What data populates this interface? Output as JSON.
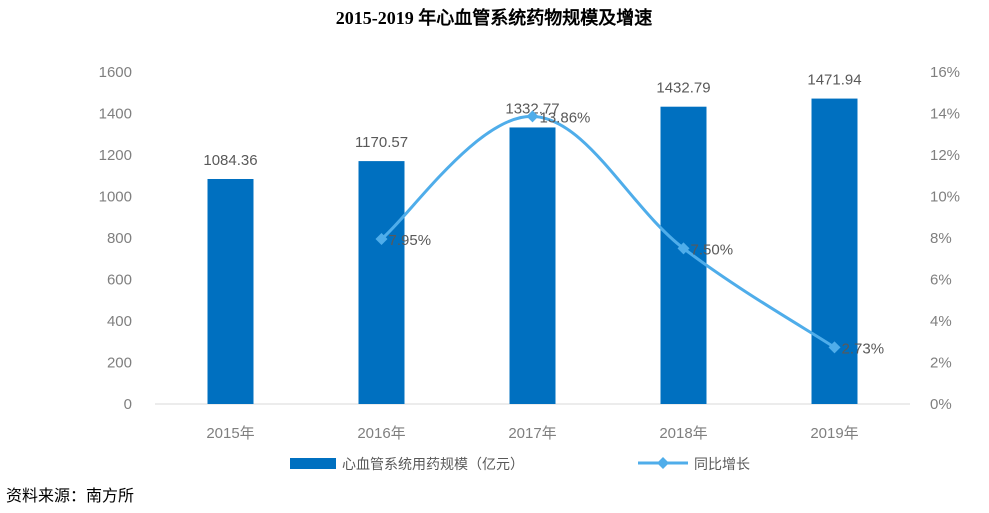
{
  "chart_data": {
    "type": "bar",
    "title": "2015-2019 年心血管系统药物规模及增速",
    "categories": [
      "2015年",
      "2016年",
      "2017年",
      "2018年",
      "2019年"
    ],
    "series": [
      {
        "name": "心血管系统用药规模（亿元）",
        "type": "bar",
        "axis": "left",
        "values": [
          1084.36,
          1170.57,
          1332.77,
          1432.79,
          1471.94
        ],
        "labels": [
          "1084.36",
          "1170.57",
          "1332.77",
          "1432.79",
          "1471.94"
        ],
        "color": "#0070C0"
      },
      {
        "name": "同比增长",
        "type": "line",
        "axis": "right",
        "x": [
          "2016年",
          "2017年",
          "2018年",
          "2019年"
        ],
        "values": [
          7.95,
          13.86,
          7.5,
          2.73
        ],
        "labels": [
          "7.95%",
          "13.86%",
          "7.50%",
          "2.73%"
        ],
        "color": "#4FADEA"
      }
    ],
    "ylim_left": [
      0,
      1600
    ],
    "yticks_left": [
      "0",
      "200",
      "400",
      "600",
      "800",
      "1000",
      "1200",
      "1400",
      "1600"
    ],
    "ylim_right": [
      0,
      16
    ],
    "yticks_right": [
      "0%",
      "2%",
      "4%",
      "6%",
      "8%",
      "10%",
      "12%",
      "14%",
      "16%"
    ],
    "grid": false,
    "legend_position": "bottom"
  },
  "source_note": "资料来源：南方所"
}
